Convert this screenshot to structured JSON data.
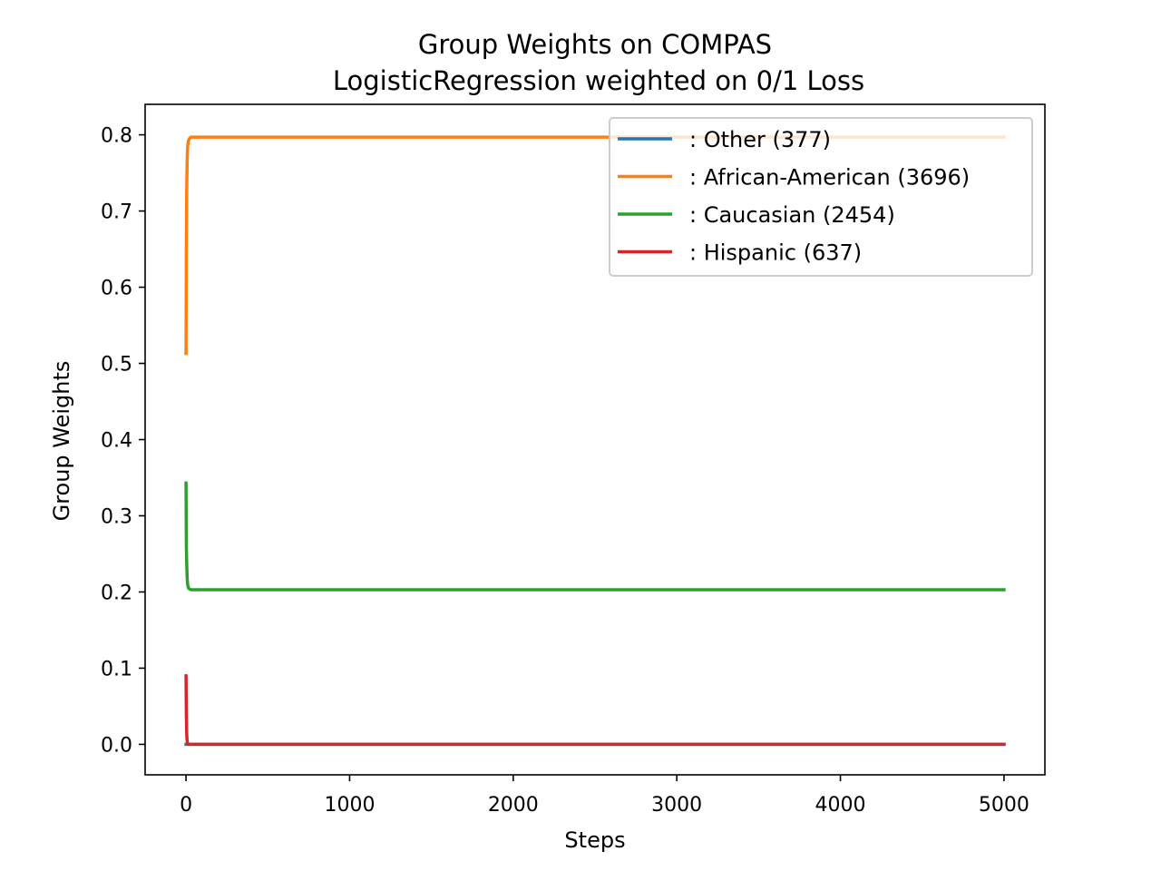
{
  "chart_data": {
    "type": "line",
    "title_line1": "Group Weights on COMPAS",
    "title_line2": "LogisticRegression weighted on 0/1 Loss",
    "xlabel": "Steps",
    "ylabel": "Group Weights",
    "xlim": [
      -250,
      5250
    ],
    "ylim": [
      -0.04,
      0.84
    ],
    "x_ticks": [
      0,
      1000,
      2000,
      3000,
      4000,
      5000
    ],
    "x_tick_labels": [
      "0",
      "1000",
      "2000",
      "3000",
      "4000",
      "5000"
    ],
    "y_ticks": [
      0.0,
      0.1,
      0.2,
      0.3,
      0.4,
      0.5,
      0.6,
      0.7,
      0.8
    ],
    "y_tick_labels": [
      "0.0",
      "0.1",
      "0.2",
      "0.3",
      "0.4",
      "0.5",
      "0.6",
      "0.7",
      "0.8"
    ],
    "grid": false,
    "legend_position": "upper-right",
    "series": [
      {
        "name": ": Other  (377)",
        "color": "#1f77b4",
        "x": [
          0,
          5,
          10,
          20,
          5000
        ],
        "y": [
          0.0,
          0.0,
          0.0,
          0.0,
          0.0
        ]
      },
      {
        "name": ": African-American  (3696)",
        "color": "#ff7f0e",
        "x": [
          0,
          2,
          4,
          6,
          8,
          10,
          15,
          20,
          30,
          5000
        ],
        "y": [
          0.513,
          0.65,
          0.72,
          0.755,
          0.775,
          0.785,
          0.792,
          0.795,
          0.797,
          0.797
        ]
      },
      {
        "name": ": Caucasian  (2454)",
        "color": "#2ca02c",
        "x": [
          0,
          2,
          4,
          6,
          8,
          10,
          15,
          20,
          30,
          5000
        ],
        "y": [
          0.343,
          0.26,
          0.24,
          0.225,
          0.215,
          0.21,
          0.205,
          0.204,
          0.203,
          0.203
        ]
      },
      {
        "name": ": Hispanic  (637)",
        "color": "#d62728",
        "x": [
          0,
          2,
          4,
          6,
          8,
          10,
          15,
          20,
          5000
        ],
        "y": [
          0.09,
          0.04,
          0.015,
          0.006,
          0.003,
          0.001,
          0.0,
          0.0,
          0.0
        ]
      }
    ]
  }
}
